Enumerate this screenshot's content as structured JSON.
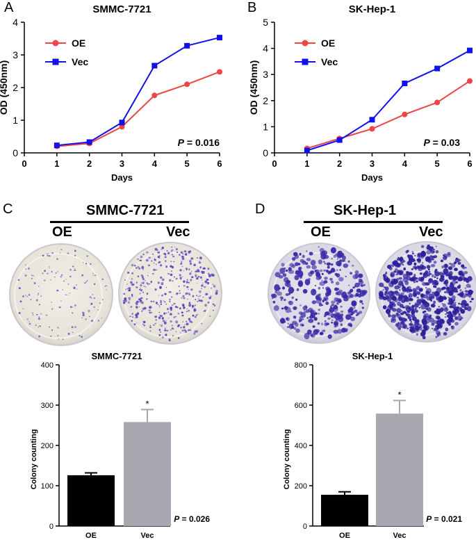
{
  "panels": {
    "A": "A",
    "B": "B",
    "C": "C",
    "D": "D"
  },
  "colors": {
    "oe_line": "#ee4444",
    "vec_line": "#1111ee",
    "oe_bar": "#000000",
    "vec_bar": "#a8a8b0"
  },
  "chart_data": [
    {
      "id": "A",
      "type": "line",
      "title": "SMMC-7721",
      "xlabel": "Days",
      "ylabel": "OD (450nm)",
      "xlim": [
        0,
        6
      ],
      "ylim": [
        0,
        4
      ],
      "xticks": [
        0,
        1,
        2,
        3,
        4,
        5,
        6
      ],
      "yticks": [
        0,
        1,
        2,
        3,
        4
      ],
      "x": [
        1,
        2,
        3,
        4,
        5,
        6
      ],
      "series": [
        {
          "name": "OE",
          "marker": "circle",
          "values": [
            0.2,
            0.29,
            0.8,
            1.76,
            2.1,
            2.48
          ]
        },
        {
          "name": "Vec",
          "marker": "square",
          "values": [
            0.23,
            0.33,
            0.93,
            2.67,
            3.28,
            3.53
          ]
        }
      ],
      "legend": "top-left",
      "annotation": {
        "p_label": "P",
        "p_value": " = 0.016"
      }
    },
    {
      "id": "B",
      "type": "line",
      "title": "SK-Hep-1",
      "xlabel": "Days",
      "ylabel": "OD (450nm)",
      "xlim": [
        0,
        6
      ],
      "ylim": [
        0,
        5
      ],
      "xticks": [
        0,
        1,
        2,
        3,
        4,
        5,
        6
      ],
      "yticks": [
        0,
        1,
        2,
        3,
        4,
        5
      ],
      "x": [
        1,
        2,
        3,
        4,
        5,
        6
      ],
      "series": [
        {
          "name": "OE",
          "marker": "circle",
          "values": [
            0.17,
            0.55,
            0.92,
            1.47,
            1.93,
            2.75
          ]
        },
        {
          "name": "Vec",
          "marker": "square",
          "values": [
            0.09,
            0.49,
            1.27,
            2.66,
            3.23,
            3.92
          ]
        }
      ],
      "legend": "top-left",
      "annotation": {
        "p_label": "P",
        "p_value": " = 0.03"
      }
    },
    {
      "id": "C",
      "type": "bar",
      "title": "SMMC-7721",
      "xlabel": "",
      "ylabel": "Colony counting",
      "ylim": [
        0,
        400
      ],
      "yticks": [
        0,
        100,
        200,
        300,
        400
      ],
      "categories": [
        "OE",
        "Vec"
      ],
      "values": [
        126,
        258
      ],
      "errors": [
        6,
        31
      ],
      "significance": [
        "",
        "*"
      ],
      "annotation": {
        "p_label": "P",
        "p_value": " = 0.026"
      }
    },
    {
      "id": "D",
      "type": "bar",
      "title": "SK-Hep-1",
      "xlabel": "",
      "ylabel": "Colony counting",
      "ylim": [
        0,
        800
      ],
      "yticks": [
        0,
        200,
        400,
        600,
        800
      ],
      "categories": [
        "OE",
        "Vec"
      ],
      "values": [
        155,
        558
      ],
      "errors": [
        15,
        65
      ],
      "significance": [
        "",
        "*"
      ],
      "annotation": {
        "p_label": "P",
        "p_value": " = 0.021"
      }
    }
  ],
  "plates": {
    "C": {
      "title": "SMMC-7721",
      "left": "OE",
      "right": "Vec"
    },
    "D": {
      "title": "SK-Hep-1",
      "left": "OE",
      "right": "Vec"
    }
  }
}
